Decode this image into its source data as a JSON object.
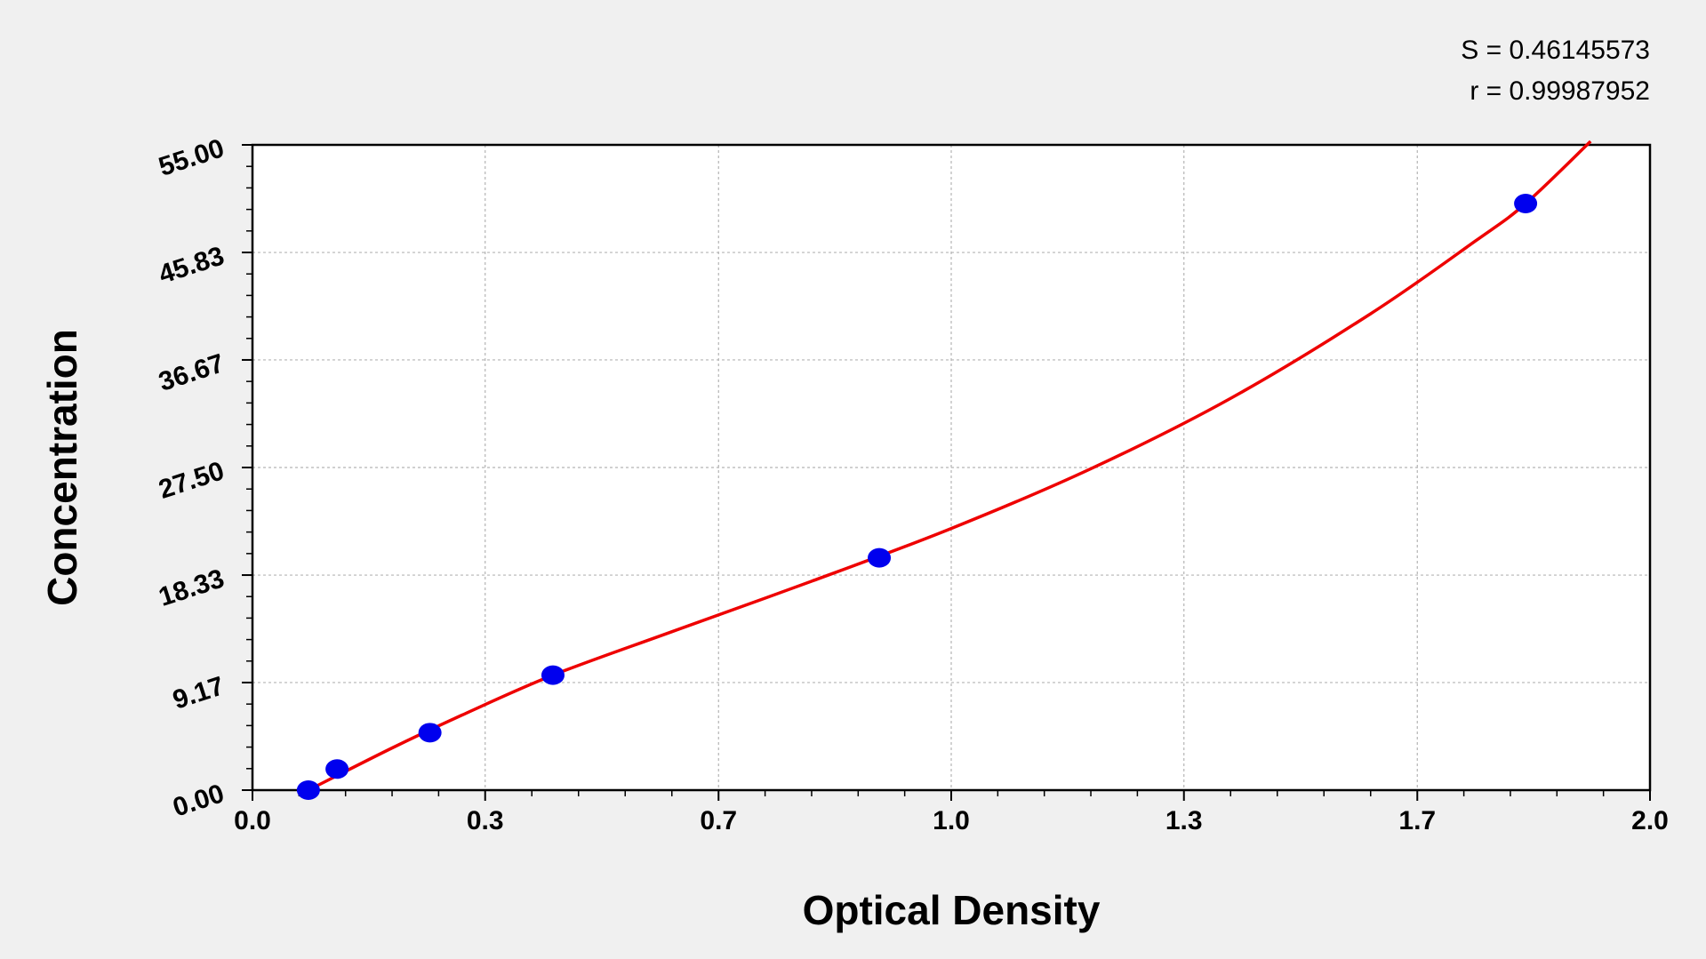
{
  "chart_data": {
    "type": "scatter",
    "title": "",
    "xlabel": "Optical Density",
    "ylabel": "Concentration",
    "xlim": [
      0.0,
      2.0
    ],
    "ylim": [
      0.0,
      55.0
    ],
    "x_ticks": [
      "0.0",
      "0.3",
      "0.7",
      "1.0",
      "1.3",
      "1.7",
      "2.0"
    ],
    "x_tick_values": [
      0.0,
      0.333,
      0.667,
      1.0,
      1.333,
      1.667,
      2.0
    ],
    "y_ticks": [
      "0.00",
      "9.17",
      "18.33",
      "27.50",
      "36.67",
      "45.83",
      "55.00"
    ],
    "y_tick_values": [
      0.0,
      9.17,
      18.33,
      27.5,
      36.67,
      45.83,
      55.0
    ],
    "grid": true,
    "points": [
      {
        "x": 0.08,
        "y": 0.0
      },
      {
        "x": 0.121,
        "y": 1.8
      },
      {
        "x": 0.254,
        "y": 4.9
      },
      {
        "x": 0.43,
        "y": 9.8
      },
      {
        "x": 0.897,
        "y": 19.8
      },
      {
        "x": 1.822,
        "y": 50.0
      }
    ],
    "fit_curve": [
      {
        "x": 0.08,
        "y": 0.0
      },
      {
        "x": 0.2,
        "y": 3.6
      },
      {
        "x": 0.3,
        "y": 6.4
      },
      {
        "x": 0.43,
        "y": 9.8
      },
      {
        "x": 0.6,
        "y": 13.5
      },
      {
        "x": 0.8,
        "y": 17.8
      },
      {
        "x": 1.0,
        "y": 22.3
      },
      {
        "x": 1.2,
        "y": 27.4
      },
      {
        "x": 1.4,
        "y": 33.4
      },
      {
        "x": 1.6,
        "y": 40.6
      },
      {
        "x": 1.75,
        "y": 46.8
      },
      {
        "x": 1.822,
        "y": 50.0
      },
      {
        "x": 1.915,
        "y": 55.3
      }
    ],
    "point_color": "#0000ee",
    "curve_color": "#ee0000"
  },
  "stats": {
    "s_line": "S = 0.46145573",
    "r_line": "r = 0.99987952"
  }
}
